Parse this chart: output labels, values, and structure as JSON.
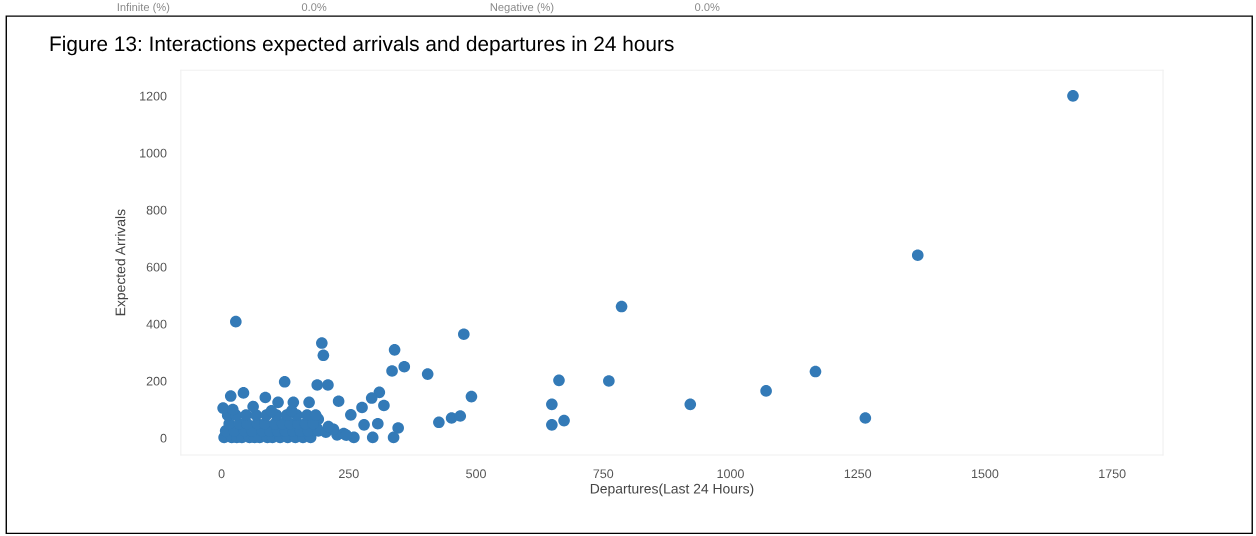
{
  "chart_data": {
    "type": "scatter",
    "title": "Figure 13: Interactions expected arrivals and departures in 24 hours",
    "xlabel": "Departures(Last 24 Hours)",
    "ylabel": "Expected Arrivals",
    "annotations": [
      "Infinite (%)",
      "0.0%",
      "Negative (%)",
      "0.0%"
    ],
    "xlim": [
      -80,
      1850
    ],
    "ylim": [
      -60,
      1290
    ],
    "xticks": [
      0,
      250,
      500,
      750,
      1000,
      1250,
      1500,
      1750
    ],
    "yticks": [
      0,
      200,
      400,
      600,
      800,
      1000,
      1200
    ],
    "grid": false,
    "marker": "circle",
    "series": [
      {
        "color": "#337ab7",
        "x": [
          1673,
          1368,
          786,
          28,
          476,
          197,
          200,
          340,
          335,
          359,
          405,
          124,
          188,
          209,
          663,
          761,
          1167,
          1070,
          921,
          649,
          491,
          649,
          673,
          1265,
          427,
          452,
          469,
          230,
          310,
          295,
          276,
          254,
          319,
          347,
          307,
          280,
          297,
          338,
          260,
          227,
          188,
          190,
          18,
          43,
          86,
          111,
          141,
          172,
          5,
          20,
          30,
          40,
          55,
          65,
          75,
          90,
          100,
          115,
          130,
          145,
          160,
          175,
          8,
          25,
          45,
          60,
          80,
          95,
          110,
          125,
          140,
          155,
          170,
          190,
          15,
          35,
          50,
          70,
          85,
          105,
          120,
          135,
          150,
          165,
          180,
          12,
          28,
          48,
          68,
          88,
          108,
          128,
          148,
          168,
          185,
          205,
          220,
          240,
          3,
          22,
          62,
          98,
          138,
          210,
          245
        ],
        "values": [
          1200,
          641,
          461,
          408,
          364,
          333,
          290,
          309,
          235,
          250,
          224,
          197,
          186,
          186,
          202,
          200,
          233,
          165,
          118,
          118,
          145,
          46,
          61,
          70,
          55,
          70,
          77,
          129,
          160,
          140,
          107,
          81,
          114,
          35,
          50,
          46,
          2,
          2,
          2,
          11,
          33,
          66,
          147,
          158,
          142,
          125,
          125,
          125,
          2,
          2,
          2,
          2,
          2,
          2,
          2,
          2,
          2,
          2,
          2,
          2,
          2,
          2,
          25,
          25,
          25,
          25,
          25,
          25,
          25,
          25,
          25,
          25,
          25,
          25,
          50,
          50,
          50,
          50,
          50,
          50,
          50,
          50,
          50,
          50,
          50,
          80,
          80,
          80,
          80,
          80,
          80,
          80,
          80,
          80,
          80,
          20,
          30,
          15,
          105,
          100,
          110,
          95,
          95,
          40,
          10
        ]
      }
    ]
  }
}
